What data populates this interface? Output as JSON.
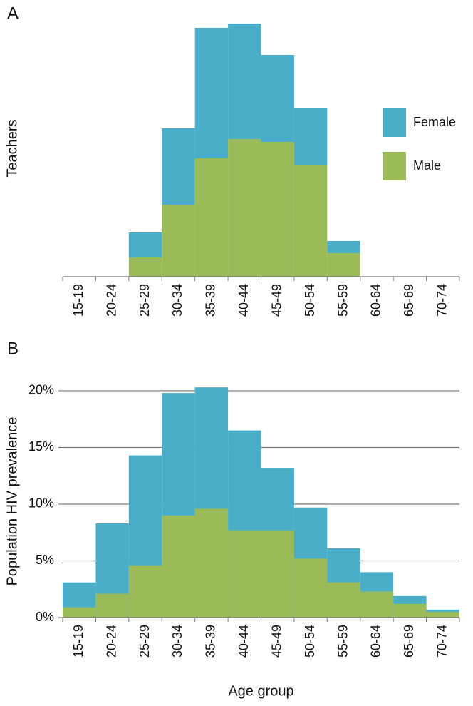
{
  "chart_data": [
    {
      "type": "bar",
      "stacked": true,
      "panel": "A",
      "y_label": "Teachers",
      "categories": [
        "15-19",
        "20-24",
        "25-29",
        "30-34",
        "35-39",
        "40-44",
        "45-49",
        "50-54",
        "55-59",
        "60-64",
        "65-69",
        "70-74"
      ],
      "series": [
        {
          "name": "Female",
          "color": "#4aaec8",
          "values": [
            0,
            0,
            35,
            107,
            183,
            162,
            122,
            80,
            17,
            0,
            0,
            0
          ]
        },
        {
          "name": "Male",
          "color": "#9bbb59",
          "values": [
            0,
            0,
            27,
            101,
            166,
            193,
            189,
            156,
            33,
            0,
            0,
            0
          ]
        }
      ],
      "ylim": [
        0,
        360
      ],
      "legend": "right"
    },
    {
      "type": "bar",
      "stacked": false,
      "panel": "B",
      "y_label": "Population HIV prevalence",
      "x_label": "Age group",
      "categories": [
        "15-19",
        "20-24",
        "25-29",
        "30-34",
        "35-39",
        "40-44",
        "45-49",
        "50-54",
        "55-59",
        "60-64",
        "65-69",
        "70-74"
      ],
      "series": [
        {
          "color": "#4aaec8",
          "values": [
            3.1,
            8.3,
            14.3,
            19.8,
            20.3,
            16.5,
            13.2,
            9.7,
            6.1,
            4.0,
            1.9,
            0.7
          ]
        },
        {
          "color": "#9bbb59",
          "values": [
            0.9,
            2.1,
            4.6,
            9.0,
            9.6,
            7.7,
            7.7,
            5.2,
            3.1,
            2.3,
            1.2,
            0.5
          ]
        }
      ],
      "ylim": [
        0,
        20.5
      ],
      "yticks": [
        {
          "value": 0,
          "label": "0%"
        },
        {
          "value": 5,
          "label": "5%"
        },
        {
          "value": 10,
          "label": "10%"
        },
        {
          "value": 15,
          "label": "15%"
        },
        {
          "value": 20,
          "label": "20%"
        }
      ],
      "grid": true
    }
  ]
}
